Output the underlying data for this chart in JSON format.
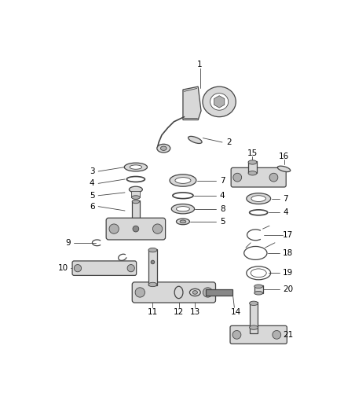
{
  "bg_color": "#ffffff",
  "line_color": "#444444",
  "fill_light": "#d8d8d8",
  "fill_mid": "#b0b0b0",
  "fill_dark": "#888888",
  "text_color": "#000000",
  "fig_width": 4.38,
  "fig_height": 5.33,
  "dpi": 100
}
